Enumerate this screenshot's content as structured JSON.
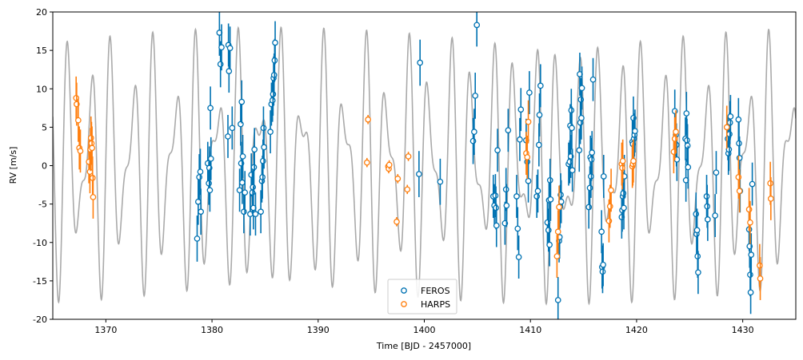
{
  "chart_data": {
    "type": "scatter",
    "xlabel": "Time [BJD - 2457000]",
    "ylabel": "RV [m/s]",
    "xlim": [
      1365,
      1435
    ],
    "ylim": [
      -20,
      20
    ],
    "x_ticks": [
      1370,
      1380,
      1390,
      1400,
      1410,
      1420,
      1430
    ],
    "y_ticks": [
      -20,
      -15,
      -10,
      -5,
      0,
      5,
      10,
      15,
      20
    ],
    "grid": false,
    "legend_position": "bottom-center",
    "model": {
      "color": "#aaaaaa",
      "components": [
        {
          "period": 2.0,
          "amplitude": 11.0,
          "phase": 0.0
        },
        {
          "period": 1.35,
          "amplitude": 7.0,
          "phase": 1.3
        }
      ]
    },
    "series": [
      {
        "name": "FEROS",
        "color": "#0072b2",
        "points": [
          [
            1378.6,
            -9.5,
            3.0
          ],
          [
            1378.7,
            -4.7,
            3.0
          ],
          [
            1378.8,
            -1.5,
            3.0
          ],
          [
            1378.9,
            -0.8,
            3.0
          ],
          [
            1378.95,
            -6.0,
            3.0
          ],
          [
            1379.6,
            0.3,
            2.8
          ],
          [
            1379.7,
            -2.3,
            2.8
          ],
          [
            1379.75,
            -0.3,
            2.8
          ],
          [
            1379.8,
            -3.2,
            2.8
          ],
          [
            1379.85,
            7.5,
            2.8
          ],
          [
            1379.9,
            0.9,
            2.8
          ],
          [
            1380.7,
            17.3,
            3.0
          ],
          [
            1380.8,
            13.2,
            3.0
          ],
          [
            1380.9,
            15.4,
            3.0
          ],
          [
            1381.5,
            3.8,
            2.8
          ],
          [
            1381.55,
            15.7,
            2.8
          ],
          [
            1381.6,
            12.3,
            2.8
          ],
          [
            1381.7,
            15.3,
            2.8
          ],
          [
            1381.9,
            4.9,
            2.8
          ],
          [
            1382.6,
            -3.2,
            2.8
          ],
          [
            1382.7,
            5.4,
            2.8
          ],
          [
            1382.75,
            0.3,
            2.8
          ],
          [
            1382.8,
            8.3,
            2.8
          ],
          [
            1382.85,
            -2.2,
            2.8
          ],
          [
            1382.9,
            1.2,
            2.8
          ],
          [
            1383.0,
            -6.0,
            2.8
          ],
          [
            1383.1,
            -3.5,
            2.8
          ],
          [
            1383.6,
            -6.3,
            2.8
          ],
          [
            1383.7,
            -1.2,
            2.8
          ],
          [
            1383.8,
            -3.5,
            2.8
          ],
          [
            1383.85,
            -2.8,
            2.8
          ],
          [
            1383.9,
            -5.5,
            2.8
          ],
          [
            1383.95,
            -0.2,
            2.8
          ],
          [
            1384.0,
            2.1,
            2.8
          ],
          [
            1384.1,
            -6.3,
            2.8
          ],
          [
            1384.6,
            -6.0,
            2.8
          ],
          [
            1384.7,
            -2.0,
            2.8
          ],
          [
            1384.75,
            -1.5,
            2.8
          ],
          [
            1384.8,
            0.6,
            2.8
          ],
          [
            1384.85,
            4.9,
            2.8
          ],
          [
            1384.9,
            2.4,
            2.8
          ],
          [
            1385.5,
            4.4,
            2.8
          ],
          [
            1385.6,
            8.0,
            2.8
          ],
          [
            1385.7,
            8.5,
            2.8
          ],
          [
            1385.75,
            9.3,
            2.8
          ],
          [
            1385.8,
            11.4,
            2.8
          ],
          [
            1385.85,
            11.8,
            2.8
          ],
          [
            1385.9,
            13.7,
            2.8
          ],
          [
            1385.95,
            16.0,
            2.8
          ],
          [
            1399.6,
            13.4,
            3.0
          ],
          [
            1399.5,
            -1.1,
            3.0
          ],
          [
            1401.5,
            -2.1,
            3.0
          ],
          [
            1404.6,
            3.2,
            3.0
          ],
          [
            1404.7,
            4.4,
            3.0
          ],
          [
            1404.8,
            9.1,
            3.0
          ],
          [
            1404.95,
            18.3,
            2.8
          ],
          [
            1406.5,
            -4.0,
            2.8
          ],
          [
            1406.6,
            -5.2,
            2.8
          ],
          [
            1406.7,
            -3.9,
            2.8
          ],
          [
            1406.75,
            -5.5,
            2.8
          ],
          [
            1406.8,
            -7.8,
            2.8
          ],
          [
            1406.9,
            2.0,
            2.8
          ],
          [
            1407.6,
            -7.5,
            2.8
          ],
          [
            1407.7,
            -3.1,
            2.8
          ],
          [
            1407.75,
            -5.2,
            2.8
          ],
          [
            1407.9,
            4.6,
            2.8
          ],
          [
            1408.7,
            -4.0,
            2.8
          ],
          [
            1408.8,
            -8.2,
            2.8
          ],
          [
            1408.9,
            -11.9,
            2.8
          ],
          [
            1409.0,
            3.4,
            2.8
          ],
          [
            1409.1,
            7.3,
            2.8
          ],
          [
            1409.6,
            3.3,
            2.8
          ],
          [
            1409.7,
            0.5,
            2.8
          ],
          [
            1409.8,
            -2.0,
            2.8
          ],
          [
            1409.9,
            9.5,
            2.8
          ],
          [
            1410.6,
            -4.0,
            2.8
          ],
          [
            1410.7,
            -3.3,
            2.8
          ],
          [
            1410.8,
            2.7,
            2.8
          ],
          [
            1410.85,
            6.6,
            2.8
          ],
          [
            1410.95,
            10.4,
            2.8
          ],
          [
            1411.6,
            -7.4,
            2.8
          ],
          [
            1411.7,
            -8.4,
            2.8
          ],
          [
            1411.75,
            -4.5,
            2.8
          ],
          [
            1411.8,
            -10.3,
            2.8
          ],
          [
            1411.85,
            -1.9,
            2.8
          ],
          [
            1411.9,
            -4.4,
            2.8
          ],
          [
            1412.6,
            -17.5,
            3.0
          ],
          [
            1412.7,
            -9.8,
            2.8
          ],
          [
            1412.75,
            -9.3,
            2.8
          ],
          [
            1412.8,
            -5.3,
            2.8
          ],
          [
            1412.85,
            -3.8,
            2.8
          ],
          [
            1412.9,
            -4.7,
            2.8
          ],
          [
            1413.6,
            0.2,
            2.8
          ],
          [
            1413.7,
            0.5,
            2.8
          ],
          [
            1413.75,
            5.2,
            2.8
          ],
          [
            1413.8,
            1.2,
            2.8
          ],
          [
            1413.85,
            7.2,
            2.8
          ],
          [
            1413.9,
            4.9,
            2.8
          ],
          [
            1413.95,
            -0.6,
            2.8
          ],
          [
            1414.6,
            2.0,
            2.8
          ],
          [
            1414.65,
            11.9,
            2.8
          ],
          [
            1414.7,
            5.6,
            2.8
          ],
          [
            1414.75,
            8.6,
            2.8
          ],
          [
            1414.8,
            6.2,
            2.8
          ],
          [
            1414.85,
            10.1,
            2.8
          ],
          [
            1415.5,
            -5.4,
            2.8
          ],
          [
            1415.6,
            -2.9,
            2.8
          ],
          [
            1415.65,
            1.1,
            2.8
          ],
          [
            1415.7,
            -1.4,
            2.8
          ],
          [
            1415.75,
            0.8,
            2.8
          ],
          [
            1415.8,
            1.7,
            2.8
          ],
          [
            1415.9,
            11.2,
            2.8
          ],
          [
            1416.7,
            -8.6,
            2.8
          ],
          [
            1416.75,
            -13.2,
            2.8
          ],
          [
            1416.8,
            -13.8,
            2.8
          ],
          [
            1416.85,
            -12.9,
            2.8
          ],
          [
            1416.9,
            -1.4,
            2.8
          ],
          [
            1418.6,
            -6.7,
            2.8
          ],
          [
            1418.65,
            -5.8,
            2.8
          ],
          [
            1418.7,
            -4.0,
            2.8
          ],
          [
            1418.75,
            -3.6,
            2.8
          ],
          [
            1418.8,
            -5.5,
            2.8
          ],
          [
            1418.85,
            -1.4,
            2.8
          ],
          [
            1419.6,
            3.1,
            2.8
          ],
          [
            1419.65,
            2.8,
            2.8
          ],
          [
            1419.7,
            6.2,
            2.8
          ],
          [
            1419.75,
            3.5,
            2.8
          ],
          [
            1419.8,
            4.0,
            2.8
          ],
          [
            1419.85,
            4.5,
            2.8
          ],
          [
            1423.6,
            7.1,
            2.8
          ],
          [
            1423.7,
            4.0,
            2.8
          ],
          [
            1423.75,
            2.7,
            2.8
          ],
          [
            1423.8,
            0.8,
            2.8
          ],
          [
            1424.6,
            3.5,
            2.8
          ],
          [
            1424.65,
            -1.9,
            2.8
          ],
          [
            1424.7,
            6.8,
            2.8
          ],
          [
            1424.75,
            3.3,
            2.8
          ],
          [
            1424.8,
            2.6,
            2.8
          ],
          [
            1424.85,
            -0.2,
            2.8
          ],
          [
            1425.6,
            -6.3,
            2.8
          ],
          [
            1425.65,
            -8.9,
            2.8
          ],
          [
            1425.7,
            -8.4,
            2.8
          ],
          [
            1425.75,
            -11.8,
            2.8
          ],
          [
            1425.8,
            -13.9,
            2.8
          ],
          [
            1426.6,
            -4.0,
            2.8
          ],
          [
            1426.65,
            -5.3,
            2.8
          ],
          [
            1426.7,
            -7.0,
            2.8
          ],
          [
            1427.4,
            -6.5,
            2.8
          ],
          [
            1427.5,
            -0.9,
            2.8
          ],
          [
            1428.6,
            3.5,
            2.8
          ],
          [
            1428.65,
            1.6,
            2.8
          ],
          [
            1428.7,
            2.1,
            2.8
          ],
          [
            1428.75,
            4.1,
            2.8
          ],
          [
            1428.8,
            5.6,
            2.8
          ],
          [
            1428.85,
            6.4,
            2.8
          ],
          [
            1429.6,
            6.0,
            2.8
          ],
          [
            1429.65,
            2.9,
            2.8
          ],
          [
            1429.7,
            1.0,
            2.8
          ],
          [
            1429.75,
            -3.3,
            2.8
          ],
          [
            1430.6,
            -8.3,
            2.8
          ],
          [
            1430.65,
            -10.5,
            2.8
          ],
          [
            1430.7,
            -14.2,
            2.8
          ],
          [
            1430.75,
            -16.5,
            2.8
          ],
          [
            1430.8,
            -11.6,
            2.8
          ],
          [
            1430.9,
            -2.4,
            2.8
          ]
        ]
      },
      {
        "name": "HARPS",
        "color": "#ff7f0e",
        "points": [
          [
            1367.2,
            8.8,
            2.8
          ],
          [
            1367.25,
            8.0,
            2.8
          ],
          [
            1367.4,
            5.9,
            2.8
          ],
          [
            1367.5,
            2.3,
            2.8
          ],
          [
            1367.6,
            1.9,
            2.8
          ],
          [
            1368.4,
            0.5,
            2.8
          ],
          [
            1368.5,
            -0.8,
            2.8
          ],
          [
            1368.55,
            2.1,
            2.8
          ],
          [
            1368.6,
            3.6,
            2.8
          ],
          [
            1368.65,
            2.9,
            2.8
          ],
          [
            1368.7,
            2.3,
            2.8
          ],
          [
            1368.75,
            -1.6,
            2.8
          ],
          [
            1368.8,
            -4.1,
            2.8
          ],
          [
            1394.6,
            0.4,
            0.6
          ],
          [
            1394.7,
            6.0,
            0.6
          ],
          [
            1396.6,
            -0.1,
            0.6
          ],
          [
            1396.65,
            -0.4,
            0.6
          ],
          [
            1396.7,
            0.1,
            0.6
          ],
          [
            1397.4,
            -7.3,
            0.6
          ],
          [
            1397.5,
            -1.7,
            0.6
          ],
          [
            1398.4,
            -3.1,
            0.6
          ],
          [
            1398.5,
            1.2,
            0.6
          ],
          [
            1409.6,
            1.6,
            2.8
          ],
          [
            1409.7,
            1.1,
            2.8
          ],
          [
            1409.8,
            5.7,
            2.8
          ],
          [
            1412.5,
            -11.8,
            2.8
          ],
          [
            1412.6,
            -8.6,
            2.8
          ],
          [
            1412.7,
            -5.4,
            2.8
          ],
          [
            1417.4,
            -7.2,
            2.8
          ],
          [
            1417.5,
            -5.3,
            2.8
          ],
          [
            1417.6,
            -3.2,
            2.8
          ],
          [
            1418.6,
            0.2,
            2.8
          ],
          [
            1418.65,
            -0.3,
            2.8
          ],
          [
            1418.7,
            0.6,
            2.8
          ],
          [
            1419.6,
            -0.1,
            2.8
          ],
          [
            1419.65,
            0.2,
            2.8
          ],
          [
            1419.7,
            0.6,
            2.8
          ],
          [
            1423.5,
            1.8,
            2.8
          ],
          [
            1423.6,
            3.5,
            2.8
          ],
          [
            1423.7,
            4.4,
            2.8
          ],
          [
            1428.5,
            5.0,
            2.8
          ],
          [
            1429.6,
            -1.5,
            2.8
          ],
          [
            1429.7,
            -3.3,
            2.8
          ],
          [
            1430.6,
            -5.7,
            2.8
          ],
          [
            1430.7,
            -7.4,
            2.8
          ],
          [
            1431.6,
            -13.0,
            2.8
          ],
          [
            1431.65,
            -14.7,
            2.8
          ],
          [
            1432.6,
            -2.3,
            2.8
          ],
          [
            1432.65,
            -4.3,
            2.8
          ]
        ]
      }
    ]
  }
}
